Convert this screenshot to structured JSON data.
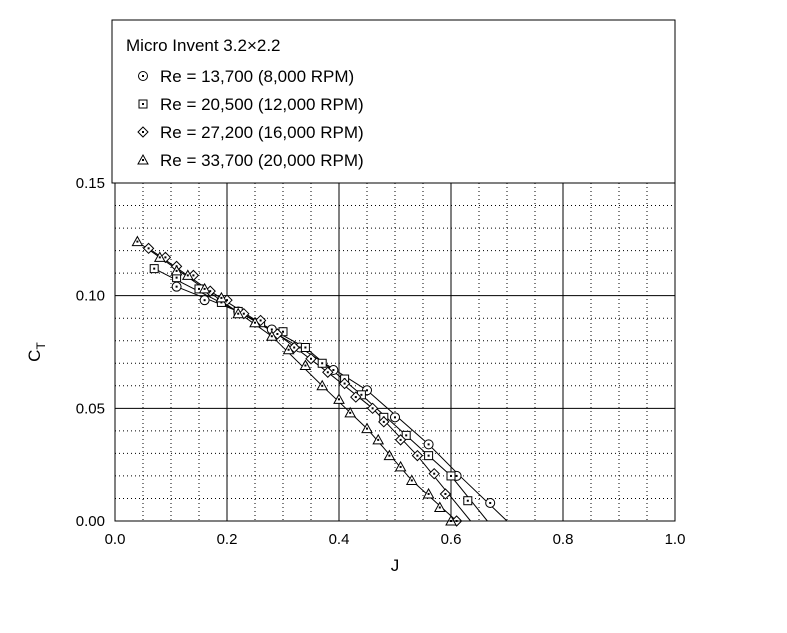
{
  "chart_data": {
    "type": "line",
    "title": "",
    "xlabel": "J",
    "ylabel": "C",
    "ylabel_subscript": "T",
    "xlim": [
      0.0,
      1.0
    ],
    "ylim": [
      0.0,
      0.15
    ],
    "grid": true,
    "legend_placement": "top, above plot",
    "legend_title": "Micro Invent 3.2×2.2",
    "x_ticks": [
      "0.0",
      "0.2",
      "0.4",
      "0.6",
      "0.8",
      "1.0"
    ],
    "y_ticks": [
      "0.00",
      "0.05",
      "0.10",
      "0.15"
    ],
    "series": [
      {
        "name": "Re = 13,700 (8,000 RPM)",
        "marker": "circle-dot",
        "points": [
          [
            0.11,
            0.104
          ],
          [
            0.16,
            0.098
          ],
          [
            0.22,
            0.093
          ],
          [
            0.28,
            0.085
          ],
          [
            0.33,
            0.077
          ],
          [
            0.39,
            0.067
          ],
          [
            0.45,
            0.058
          ],
          [
            0.5,
            0.046
          ],
          [
            0.56,
            0.034
          ],
          [
            0.61,
            0.02
          ],
          [
            0.67,
            0.008
          ]
        ],
        "fit_line": [
          [
            0.11,
            0.104
          ],
          [
            0.22,
            0.093
          ],
          [
            0.33,
            0.077
          ],
          [
            0.45,
            0.058
          ],
          [
            0.56,
            0.034
          ],
          [
            0.62,
            0.019
          ],
          [
            0.7,
            0.0
          ]
        ]
      },
      {
        "name": "Re = 20,500 (12,000 RPM)",
        "marker": "square-dot",
        "points": [
          [
            0.07,
            0.112
          ],
          [
            0.11,
            0.108
          ],
          [
            0.15,
            0.103
          ],
          [
            0.19,
            0.097
          ],
          [
            0.22,
            0.093
          ],
          [
            0.26,
            0.088
          ],
          [
            0.3,
            0.084
          ],
          [
            0.34,
            0.077
          ],
          [
            0.37,
            0.07
          ],
          [
            0.41,
            0.063
          ],
          [
            0.44,
            0.056
          ],
          [
            0.48,
            0.046
          ],
          [
            0.52,
            0.038
          ],
          [
            0.56,
            0.029
          ],
          [
            0.6,
            0.02
          ],
          [
            0.63,
            0.009
          ]
        ],
        "fit_line": [
          [
            0.07,
            0.112
          ],
          [
            0.22,
            0.093
          ],
          [
            0.34,
            0.077
          ],
          [
            0.44,
            0.056
          ],
          [
            0.52,
            0.038
          ],
          [
            0.6,
            0.02
          ],
          [
            0.665,
            0.0
          ]
        ]
      },
      {
        "name": "Re = 27,200 (16,000 RPM)",
        "marker": "diamond-dot",
        "points": [
          [
            0.06,
            0.121
          ],
          [
            0.09,
            0.117
          ],
          [
            0.11,
            0.113
          ],
          [
            0.14,
            0.109
          ],
          [
            0.17,
            0.102
          ],
          [
            0.2,
            0.098
          ],
          [
            0.23,
            0.092
          ],
          [
            0.26,
            0.089
          ],
          [
            0.29,
            0.083
          ],
          [
            0.32,
            0.077
          ],
          [
            0.35,
            0.072
          ],
          [
            0.38,
            0.066
          ],
          [
            0.41,
            0.061
          ],
          [
            0.43,
            0.055
          ],
          [
            0.46,
            0.05
          ],
          [
            0.48,
            0.044
          ],
          [
            0.51,
            0.036
          ],
          [
            0.54,
            0.029
          ],
          [
            0.57,
            0.021
          ],
          [
            0.59,
            0.012
          ],
          [
            0.61,
            0.0
          ]
        ],
        "fit_line": [
          [
            0.06,
            0.121
          ],
          [
            0.17,
            0.102
          ],
          [
            0.29,
            0.083
          ],
          [
            0.38,
            0.066
          ],
          [
            0.46,
            0.05
          ],
          [
            0.54,
            0.029
          ],
          [
            0.635,
            0.0
          ]
        ]
      },
      {
        "name": "Re = 33,700 (20,000 RPM)",
        "marker": "triangle-dot",
        "points": [
          [
            0.04,
            0.124
          ],
          [
            0.08,
            0.117
          ],
          [
            0.11,
            0.111
          ],
          [
            0.13,
            0.109
          ],
          [
            0.16,
            0.103
          ],
          [
            0.19,
            0.099
          ],
          [
            0.22,
            0.092
          ],
          [
            0.25,
            0.088
          ],
          [
            0.28,
            0.082
          ],
          [
            0.31,
            0.076
          ],
          [
            0.34,
            0.069
          ],
          [
            0.37,
            0.06
          ],
          [
            0.4,
            0.054
          ],
          [
            0.42,
            0.048
          ],
          [
            0.45,
            0.041
          ],
          [
            0.47,
            0.036
          ],
          [
            0.49,
            0.029
          ],
          [
            0.51,
            0.024
          ],
          [
            0.53,
            0.018
          ],
          [
            0.56,
            0.012
          ],
          [
            0.58,
            0.006
          ],
          [
            0.6,
            0.0
          ]
        ],
        "fit_line": [
          [
            0.04,
            0.124
          ],
          [
            0.16,
            0.103
          ],
          [
            0.28,
            0.082
          ],
          [
            0.37,
            0.06
          ],
          [
            0.45,
            0.041
          ],
          [
            0.53,
            0.018
          ],
          [
            0.61,
            0.0
          ]
        ]
      }
    ]
  }
}
